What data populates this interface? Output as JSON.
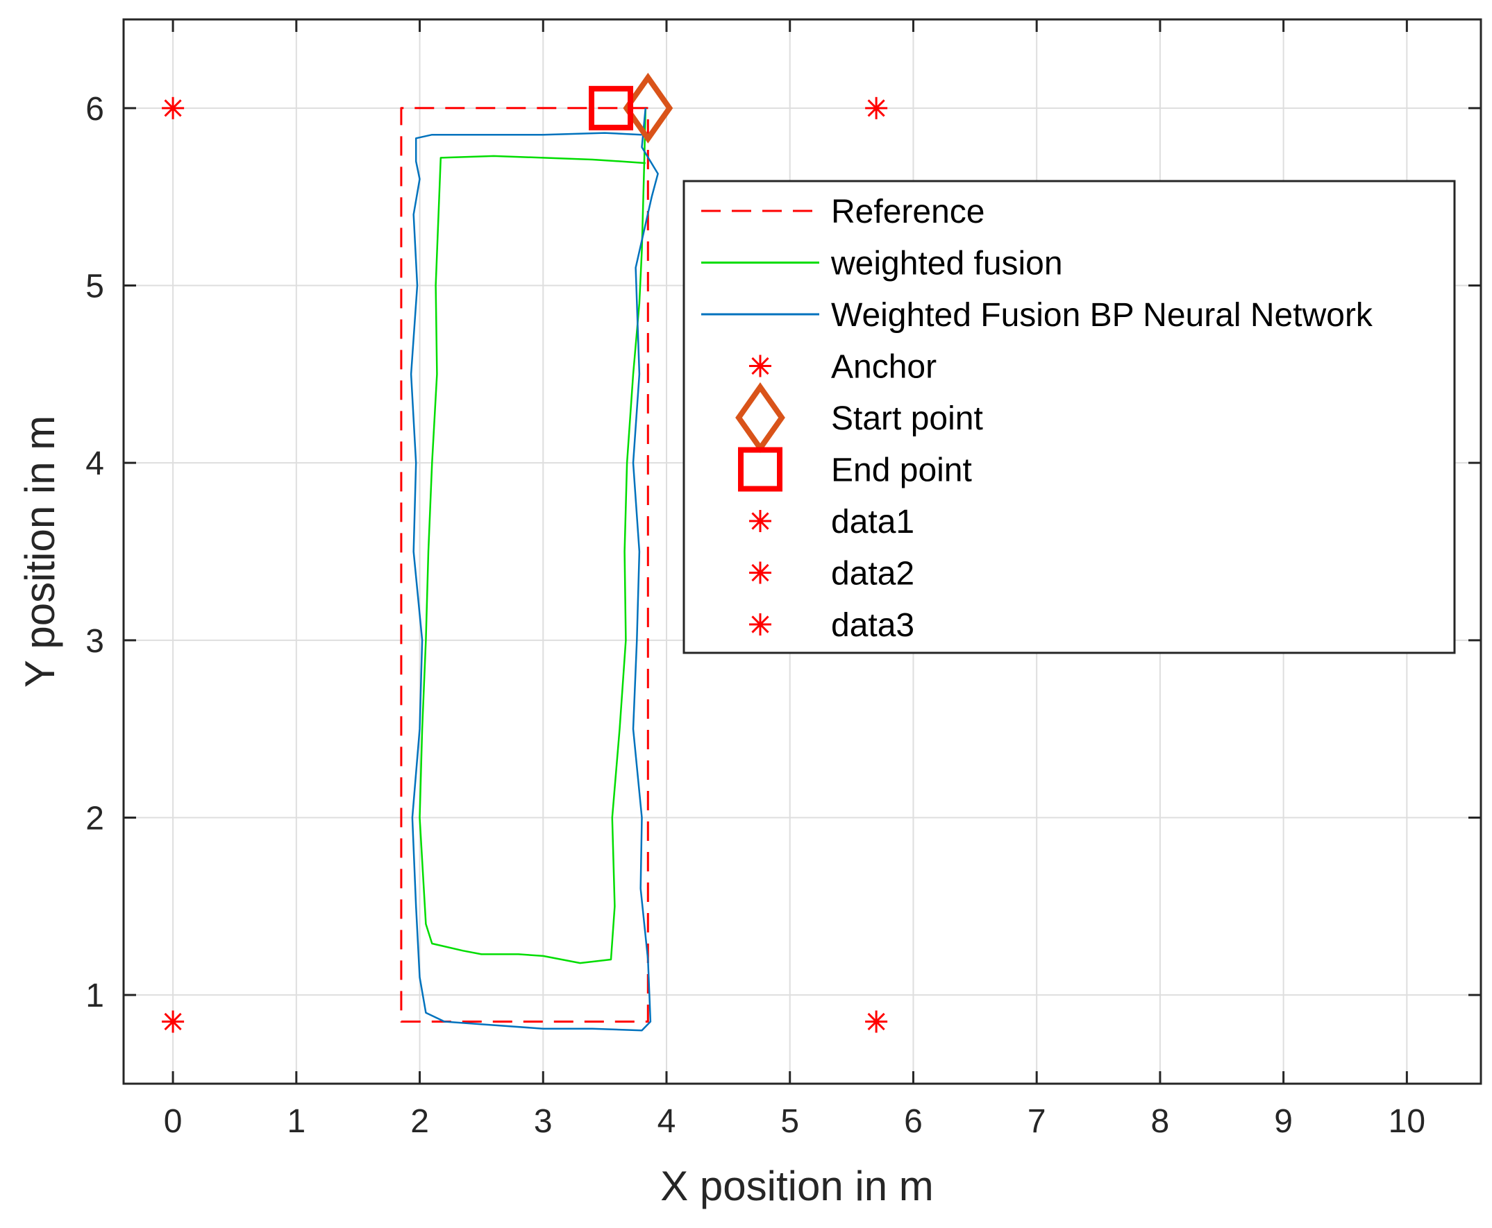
{
  "chart_data": {
    "type": "line",
    "xlabel": "X position in m",
    "ylabel": "Y position in m",
    "xlim": [
      -0.4,
      10.6
    ],
    "ylim": [
      0.5,
      6.5
    ],
    "xticks": [
      0,
      1,
      2,
      3,
      4,
      5,
      6,
      7,
      8,
      9,
      10
    ],
    "yticks": [
      1,
      2,
      3,
      4,
      5,
      6
    ],
    "grid": true,
    "legend_position": "top-right",
    "series": [
      {
        "name": "Reference",
        "kind": "line",
        "style": "dashed",
        "color": "#ff0000",
        "x": [
          3.85,
          1.85,
          1.85,
          3.85,
          3.85
        ],
        "y": [
          6.0,
          6.0,
          0.85,
          0.85,
          6.0
        ]
      },
      {
        "name": "weighted fusion",
        "kind": "line",
        "style": "solid",
        "color": "#00dd00",
        "x": [
          3.83,
          3.82,
          3.8,
          3.78,
          3.73,
          3.68,
          3.66,
          3.67,
          3.62,
          3.56,
          3.58,
          3.55,
          3.3,
          3.0,
          2.8,
          2.5,
          2.35,
          2.1,
          2.05,
          2.0,
          2.02,
          2.05,
          2.07,
          2.1,
          2.14,
          2.13,
          2.17,
          2.6,
          3.0,
          3.4,
          3.62,
          3.83
        ],
        "y": [
          6.0,
          5.7,
          5.2,
          4.9,
          4.5,
          4.0,
          3.5,
          3.0,
          2.5,
          2.0,
          1.5,
          1.2,
          1.18,
          1.22,
          1.23,
          1.23,
          1.25,
          1.29,
          1.4,
          2.0,
          2.5,
          3.0,
          3.5,
          4.0,
          4.5,
          5.0,
          5.72,
          5.73,
          5.72,
          5.71,
          5.7,
          5.69
        ]
      },
      {
        "name": "Weighted Fusion BP Neural Network",
        "kind": "line",
        "style": "solid",
        "color": "#0072bd",
        "x": [
          3.83,
          3.8,
          3.93,
          3.88,
          3.75,
          3.78,
          3.73,
          3.78,
          3.76,
          3.73,
          3.8,
          3.79,
          3.85,
          3.87,
          3.8,
          3.4,
          3.0,
          2.6,
          2.2,
          2.05,
          2.0,
          1.97,
          1.94,
          2.0,
          2.02,
          1.95,
          1.97,
          1.93,
          1.98,
          1.95,
          2.0,
          1.97,
          1.97,
          2.1,
          2.5,
          3.0,
          3.5,
          3.8
        ],
        "y": [
          6.0,
          5.78,
          5.63,
          5.5,
          5.1,
          4.5,
          4.0,
          3.5,
          3.0,
          2.5,
          2.0,
          1.6,
          1.2,
          0.85,
          0.8,
          0.81,
          0.81,
          0.83,
          0.85,
          0.9,
          1.1,
          1.5,
          2.0,
          2.5,
          3.0,
          3.5,
          4.0,
          4.5,
          5.0,
          5.4,
          5.6,
          5.7,
          5.83,
          5.85,
          5.85,
          5.85,
          5.86,
          5.85
        ]
      },
      {
        "name": "Anchor",
        "kind": "marker",
        "marker": "asterisk",
        "color": "#ff0000",
        "x": [
          0,
          5.7,
          0,
          5.7
        ],
        "y": [
          6.0,
          6.0,
          0.85,
          0.85
        ]
      },
      {
        "name": "Start point",
        "kind": "marker",
        "marker": "diamond",
        "color": "#d95319",
        "x": [
          3.85
        ],
        "y": [
          6.0
        ]
      },
      {
        "name": "End point",
        "kind": "marker",
        "marker": "square",
        "color": "#ff0000",
        "x": [
          3.55
        ],
        "y": [
          6.0
        ]
      },
      {
        "name": "data1",
        "kind": "marker",
        "marker": "asterisk",
        "color": "#ff0000",
        "x": [],
        "y": []
      },
      {
        "name": "data2",
        "kind": "marker",
        "marker": "asterisk",
        "color": "#ff0000",
        "x": [],
        "y": []
      },
      {
        "name": "data3",
        "kind": "marker",
        "marker": "asterisk",
        "color": "#ff0000",
        "x": [],
        "y": []
      }
    ]
  }
}
